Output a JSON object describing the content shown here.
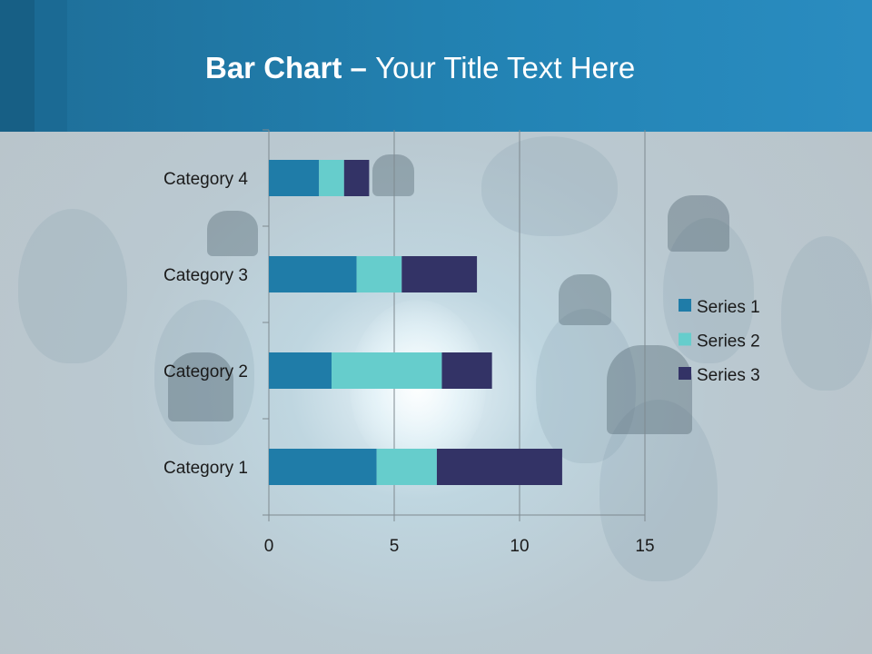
{
  "slide": {
    "title_bold": "Bar Chart",
    "title_dash": " – ",
    "title_light": "Your Title Text Here"
  },
  "chart_data": {
    "type": "bar",
    "orientation": "horizontal",
    "stacked": true,
    "categories": [
      "Category 1",
      "Category 2",
      "Category 3",
      "Category 4"
    ],
    "series": [
      {
        "name": "Series 1",
        "values": [
          4.3,
          2.5,
          3.5,
          2.0
        ],
        "color": "#1f7ca8"
      },
      {
        "name": "Series 2",
        "values": [
          2.4,
          4.4,
          1.8,
          1.0
        ],
        "color": "#66cdcc"
      },
      {
        "name": "Series 3",
        "values": [
          5.0,
          2.0,
          3.0,
          1.0
        ],
        "color": "#333366"
      }
    ],
    "xlim": [
      0,
      15
    ],
    "xticks": [
      "0",
      "5",
      "10",
      "15"
    ],
    "grid": true,
    "legend": "right"
  }
}
